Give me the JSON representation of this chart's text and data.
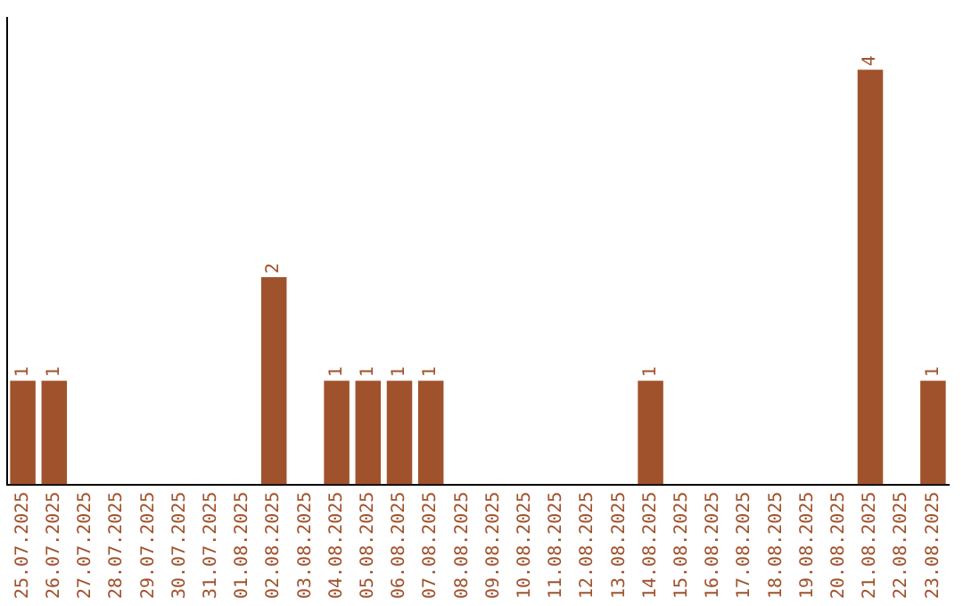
{
  "chart_data": {
    "type": "bar",
    "categories": [
      "25.07.2025",
      "26.07.2025",
      "27.07.2025",
      "28.07.2025",
      "29.07.2025",
      "30.07.2025",
      "31.07.2025",
      "01.08.2025",
      "02.08.2025",
      "03.08.2025",
      "04.08.2025",
      "05.08.2025",
      "06.08.2025",
      "07.08.2025",
      "08.08.2025",
      "09.08.2025",
      "10.08.2025",
      "11.08.2025",
      "12.08.2025",
      "13.08.2025",
      "14.08.2025",
      "15.08.2025",
      "16.08.2025",
      "17.08.2025",
      "18.08.2025",
      "19.08.2025",
      "20.08.2025",
      "21.08.2025",
      "22.08.2025",
      "23.08.2025"
    ],
    "values": [
      1,
      1,
      0,
      0,
      0,
      0,
      0,
      0,
      2,
      0,
      1,
      1,
      1,
      1,
      0,
      0,
      0,
      0,
      0,
      0,
      1,
      0,
      0,
      0,
      0,
      0,
      0,
      4,
      0,
      1
    ],
    "value_labels": [
      "1",
      "1",
      null,
      null,
      null,
      null,
      null,
      null,
      "2",
      null,
      "1",
      "1",
      "1",
      "1",
      null,
      null,
      null,
      null,
      null,
      null,
      "1",
      null,
      null,
      null,
      null,
      null,
      null,
      "4",
      null,
      "1"
    ],
    "color": "#a0522d",
    "grid": false,
    "legend": false,
    "tick_labels": "x"
  }
}
